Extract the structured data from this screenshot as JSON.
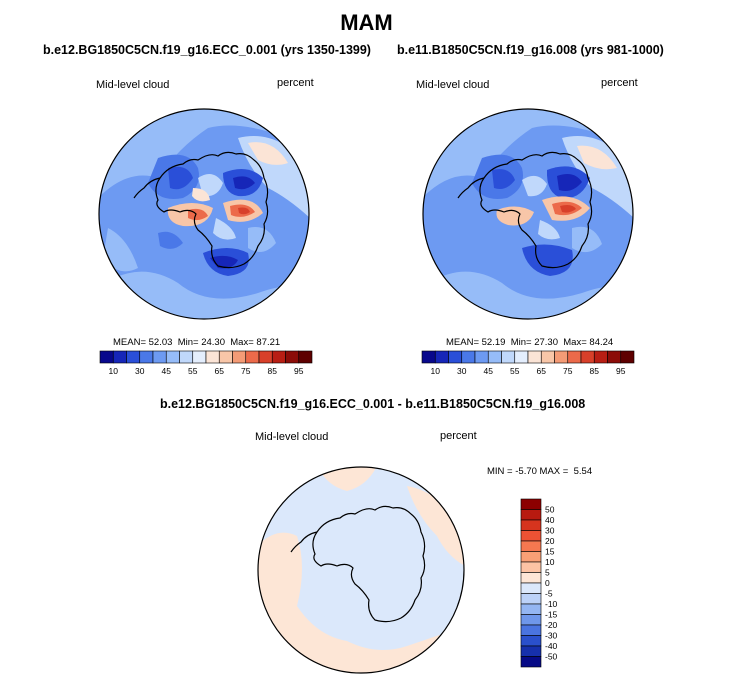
{
  "chart_data": [
    {
      "type": "heatmap",
      "projection": "south-polar-stereographic",
      "season": "MAM",
      "title": "b.e12.BG1850C5CN.f19_g16.ECC_0.001 (yrs 1350-1399)",
      "variable": "Mid-level cloud",
      "units": "percent",
      "stats": {
        "mean_label": "MEAN=",
        "mean": "52.03",
        "min_label": "Min=",
        "min": "24.30",
        "max_label": "Max=",
        "max": "87.21"
      },
      "colorbar_ticks": [
        "10",
        "30",
        "45",
        "55",
        "65",
        "75",
        "85",
        "95"
      ],
      "levels": [
        10,
        20,
        30,
        40,
        45,
        50,
        55,
        60,
        65,
        70,
        75,
        80,
        85,
        90,
        95
      ],
      "colors": [
        "#08088c",
        "#1626b8",
        "#2a4fd8",
        "#4a78e8",
        "#6d9af2",
        "#96bcf8",
        "#c0d8fb",
        "#e4eefd",
        "#fbe4d6",
        "#f8c6a8",
        "#f49b76",
        "#ec6a4a",
        "#d8402a",
        "#b81e14",
        "#8c0c08",
        "#5e0000"
      ]
    },
    {
      "type": "heatmap",
      "projection": "south-polar-stereographic",
      "season": "MAM",
      "title": "b.e11.B1850C5CN.f19_g16.008 (yrs 981-1000)",
      "variable": "Mid-level cloud",
      "units": "percent",
      "stats": {
        "mean_label": "MEAN=",
        "mean": "52.19",
        "min_label": "Min=",
        "min": "27.30",
        "max_label": "Max=",
        "max": "84.24"
      },
      "colorbar_ticks": [
        "10",
        "30",
        "45",
        "55",
        "65",
        "75",
        "85",
        "95"
      ]
    },
    {
      "type": "heatmap",
      "projection": "south-polar-stereographic",
      "season": "MAM",
      "title": "b.e12.BG1850C5CN.f19_g16.ECC_0.001 - b.e11.B1850C5CN.f19_g16.008",
      "variable": "Mid-level cloud",
      "units": "percent",
      "stats": {
        "min_label": "MIN =",
        "min": "-5.70",
        "max_label": "MAX =",
        "max": "5.54"
      },
      "colorbar_ticks": [
        "50",
        "40",
        "30",
        "20",
        "15",
        "10",
        "5",
        "0",
        "-5",
        "-10",
        "-15",
        "-20",
        "-30",
        "-40",
        "-50"
      ],
      "colors": [
        "#8c0000",
        "#b81a10",
        "#d6341e",
        "#ec5234",
        "#f67850",
        "#f9a076",
        "#fcc3a4",
        "#fde6d6",
        "#dbe8fb",
        "#bcd2f8",
        "#94b6f2",
        "#6f97ea",
        "#4a74e0",
        "#2a50cc",
        "#1630ac",
        "#060a86"
      ]
    }
  ],
  "page_title": "MAM"
}
